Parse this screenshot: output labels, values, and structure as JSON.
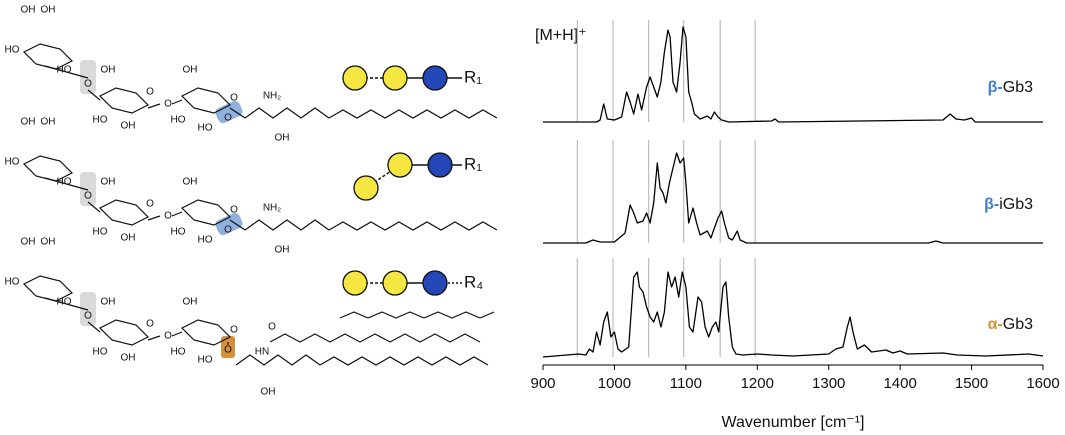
{
  "chart_data": {
    "type": "line",
    "annotation": "[M+H]⁺",
    "xlabel": "Wavenumber [cm⁻¹]",
    "xlim": [
      900,
      1600
    ],
    "xticks": [
      900,
      1000,
      1100,
      1200,
      1300,
      1400,
      1500,
      1600
    ],
    "ylim": [
      0,
      100
    ],
    "reference_lines": [
      948,
      998,
      1048,
      1097,
      1148,
      1197
    ],
    "reference_color": "#b0b0b0",
    "series": [
      {
        "anomer": "β-",
        "anomer_color": "#3f7fcb",
        "name": "Gb3",
        "color": "#000000",
        "x": [
          900,
          975,
          980,
          985,
          990,
          1000,
          1010,
          1017,
          1022,
          1027,
          1033,
          1038,
          1045,
          1050,
          1055,
          1060,
          1065,
          1070,
          1075,
          1078,
          1082,
          1087,
          1092,
          1096,
          1100,
          1104,
          1108,
          1112,
          1120,
          1130,
          1135,
          1140,
          1145,
          1150,
          1160,
          1220,
          1225,
          1230,
          1460,
          1470,
          1478,
          1490,
          1500,
          1505,
          1600
        ],
        "values": [
          0,
          0,
          2,
          18,
          3,
          2,
          5,
          30,
          20,
          8,
          28,
          12,
          35,
          45,
          35,
          25,
          40,
          70,
          92,
          85,
          40,
          30,
          60,
          95,
          85,
          30,
          20,
          8,
          3,
          6,
          3,
          10,
          5,
          2,
          0,
          1,
          3,
          0,
          2,
          8,
          3,
          2,
          4,
          0,
          0
        ]
      },
      {
        "anomer": "β-",
        "anomer_color": "#3f7fcb",
        "name": "iGb3",
        "color": "#000000",
        "x": [
          900,
          960,
          970,
          980,
          1000,
          1015,
          1022,
          1027,
          1032,
          1040,
          1045,
          1050,
          1055,
          1060,
          1064,
          1068,
          1072,
          1077,
          1082,
          1087,
          1092,
          1097,
          1100,
          1104,
          1110,
          1115,
          1120,
          1130,
          1135,
          1140,
          1145,
          1150,
          1154,
          1160,
          1165,
          1172,
          1176,
          1185,
          1440,
          1450,
          1460,
          1600
        ],
        "values": [
          0,
          0,
          3,
          1,
          1,
          10,
          38,
          30,
          20,
          22,
          30,
          20,
          40,
          80,
          55,
          50,
          40,
          60,
          75,
          90,
          80,
          85,
          60,
          20,
          35,
          20,
          8,
          12,
          5,
          15,
          25,
          32,
          20,
          5,
          3,
          12,
          3,
          0,
          0,
          2,
          0,
          0
        ]
      },
      {
        "anomer": "α-",
        "anomer_color": "#d4903a",
        "name": "Gb3",
        "color": "#000000",
        "x": [
          900,
          950,
          960,
          965,
          970,
          975,
          980,
          985,
          990,
          995,
          1000,
          1005,
          1010,
          1020,
          1027,
          1032,
          1035,
          1040,
          1045,
          1050,
          1055,
          1060,
          1065,
          1070,
          1075,
          1080,
          1085,
          1090,
          1095,
          1100,
          1105,
          1110,
          1117,
          1122,
          1127,
          1132,
          1137,
          1142,
          1146,
          1152,
          1156,
          1160,
          1165,
          1170,
          1180,
          1200,
          1220,
          1250,
          1300,
          1310,
          1320,
          1326,
          1330,
          1334,
          1340,
          1350,
          1360,
          1380,
          1390,
          1400,
          1410,
          1460,
          1480,
          1520,
          1580,
          1600
        ],
        "values": [
          0,
          3,
          2,
          8,
          5,
          25,
          12,
          35,
          45,
          20,
          25,
          8,
          5,
          10,
          80,
          85,
          70,
          65,
          50,
          40,
          35,
          45,
          30,
          45,
          85,
          70,
          80,
          60,
          85,
          70,
          30,
          25,
          60,
          55,
          30,
          20,
          30,
          35,
          25,
          70,
          75,
          40,
          10,
          3,
          2,
          3,
          2,
          1,
          3,
          8,
          10,
          30,
          40,
          25,
          8,
          12,
          5,
          7,
          4,
          6,
          3,
          4,
          2,
          1,
          3,
          1
        ]
      }
    ]
  },
  "structures": [
    {
      "labels": [
        "OH",
        "OH",
        "HO",
        "HO",
        "O",
        "OH",
        "O",
        "HO",
        "OH",
        "O",
        "OH",
        "HO",
        "O",
        "HO",
        "O",
        "NH₂",
        "OH"
      ],
      "glycan_tail": "R₁"
    },
    {
      "labels": [
        "OH",
        "OH",
        "HO",
        "HO",
        "O",
        "OH",
        "O",
        "HO",
        "OH",
        "O",
        "OH",
        "HO",
        "O",
        "HO",
        "O",
        "NH₂",
        "OH"
      ],
      "glycan_tail": "R₁"
    },
    {
      "labels": [
        "OH",
        "OH",
        "HO",
        "HO",
        "O",
        "OH",
        "O",
        "HO",
        "OH",
        "O",
        "OH",
        "HO",
        "O",
        "HO",
        "O",
        "HN",
        "O",
        "OH"
      ],
      "glycan_tail": "R₄"
    }
  ]
}
